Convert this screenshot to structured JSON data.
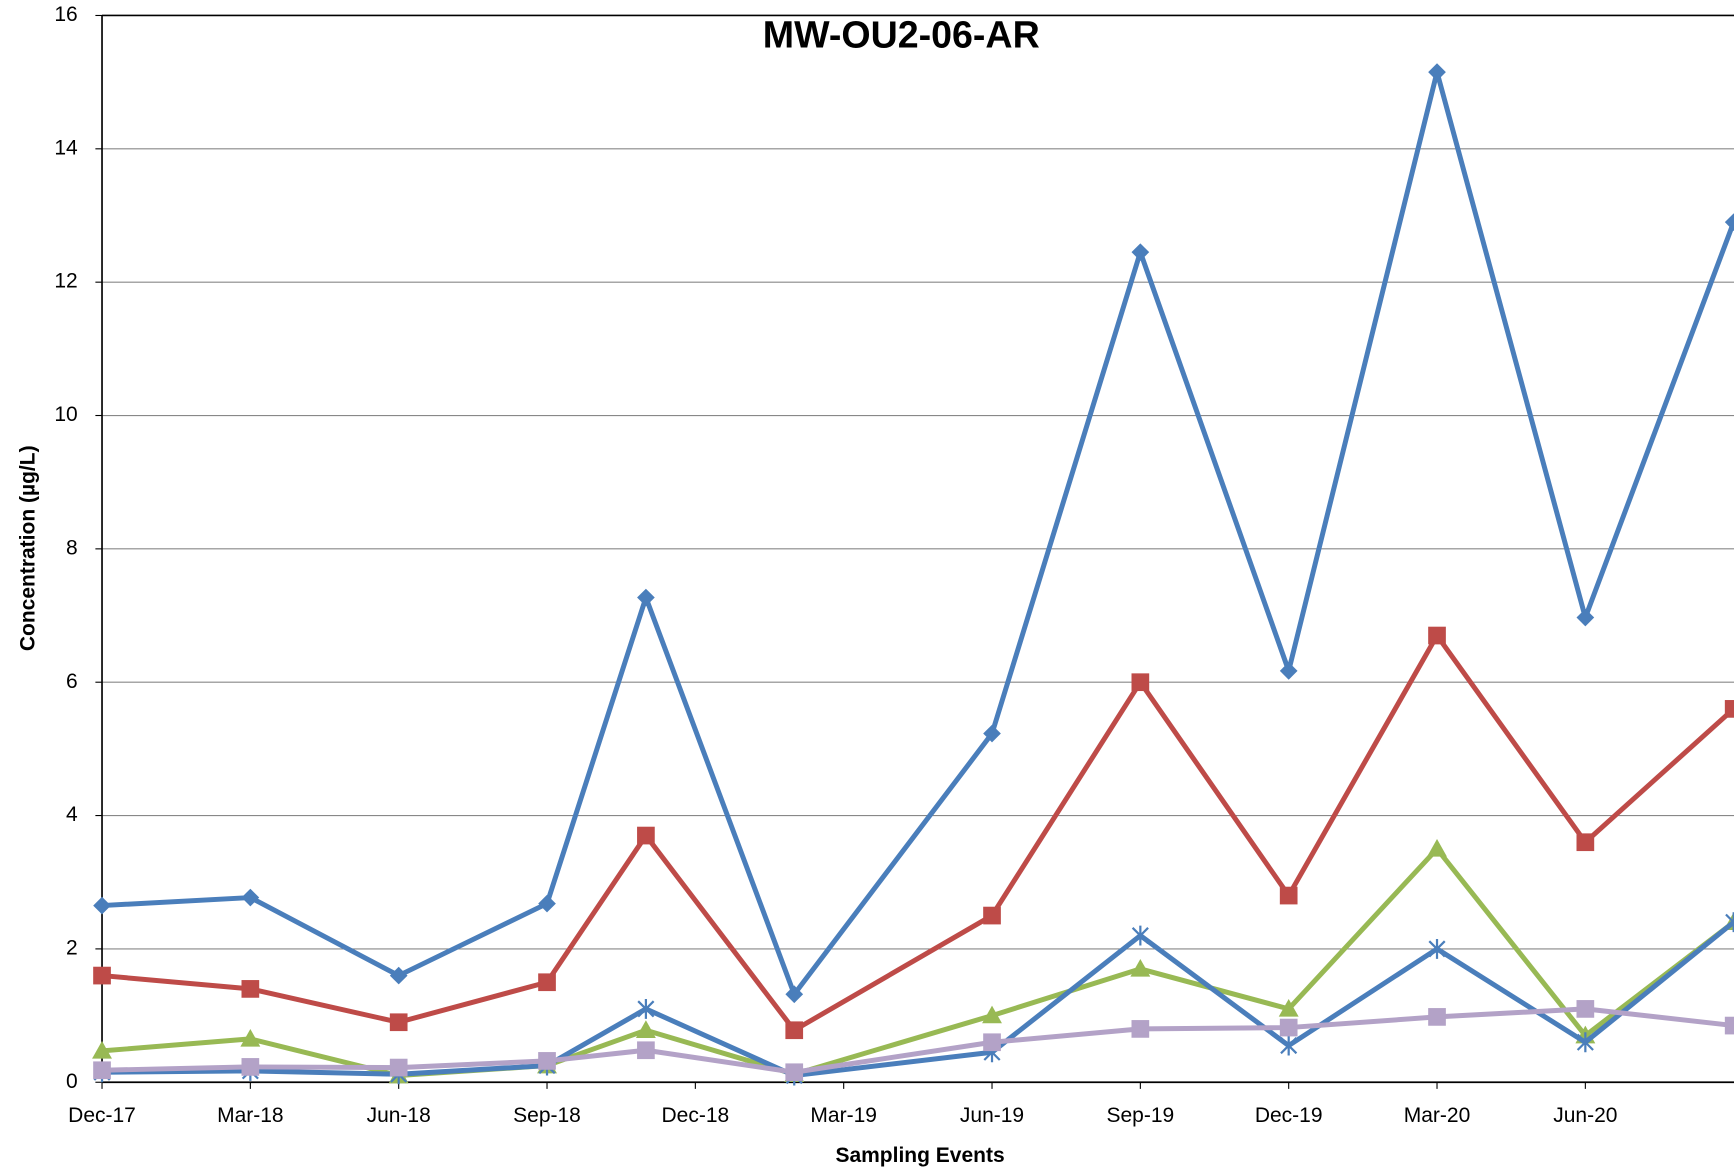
{
  "chart_data": {
    "type": "line",
    "title": "MW-OU2-06-AR",
    "x_label": "Sampling Events",
    "y_label": "Concentration (µg/L)",
    "x": [
      "2017-12",
      "2018-03",
      "2018-06",
      "2018-09",
      "2018-11",
      "2019-02",
      "2019-06",
      "2019-09",
      "2019-12",
      "2020-03",
      "2020-06",
      "2020-09"
    ],
    "xlim": [
      "2017-12",
      "2020-09"
    ],
    "xticks": [
      {
        "value": "2017-12",
        "label": "Dec-17"
      },
      {
        "value": "2018-03",
        "label": "Mar-18"
      },
      {
        "value": "2018-06",
        "label": "Jun-18"
      },
      {
        "value": "2018-09",
        "label": "Sep-18"
      },
      {
        "value": "2018-12",
        "label": "Dec-18"
      },
      {
        "value": "2019-03",
        "label": "Mar-19"
      },
      {
        "value": "2019-06",
        "label": "Jun-19"
      },
      {
        "value": "2019-09",
        "label": "Sep-19"
      },
      {
        "value": "2019-12",
        "label": "Dec-19"
      },
      {
        "value": "2020-03",
        "label": "Mar-20"
      },
      {
        "value": "2020-06",
        "label": "Jun-20"
      }
    ],
    "ylim": [
      0,
      16
    ],
    "yticks": [
      0,
      2,
      4,
      6,
      8,
      10,
      12,
      14,
      16
    ],
    "grid": true,
    "series": [
      {
        "color": "#4a7ebb",
        "marker": "diamond",
        "values": [
          2.65,
          2.77,
          1.6,
          2.68,
          7.27,
          1.32,
          5.23,
          12.45,
          6.17,
          15.15,
          6.97,
          12.9
        ]
      },
      {
        "color": "#be4b48",
        "marker": "square",
        "values": [
          1.6,
          1.4,
          0.9,
          1.5,
          3.7,
          0.78,
          2.5,
          6.0,
          2.8,
          6.7,
          3.6,
          5.6
        ]
      },
      {
        "color": "#98b954",
        "marker": "triangle",
        "values": [
          0.47,
          0.65,
          0.1,
          0.25,
          0.78,
          0.12,
          1.0,
          1.7,
          1.1,
          3.5,
          0.7,
          2.4
        ]
      },
      {
        "color": "#4a7ebb",
        "marker": "star",
        "values": [
          0.15,
          0.17,
          0.12,
          0.25,
          1.1,
          0.1,
          0.45,
          2.2,
          0.55,
          2.0,
          0.6,
          2.4
        ]
      },
      {
        "color": "#b3a2c7",
        "marker": "square",
        "values": [
          0.18,
          0.23,
          0.22,
          0.32,
          0.48,
          0.15,
          0.6,
          0.8,
          0.82,
          0.98,
          1.1,
          0.85
        ]
      }
    ]
  }
}
